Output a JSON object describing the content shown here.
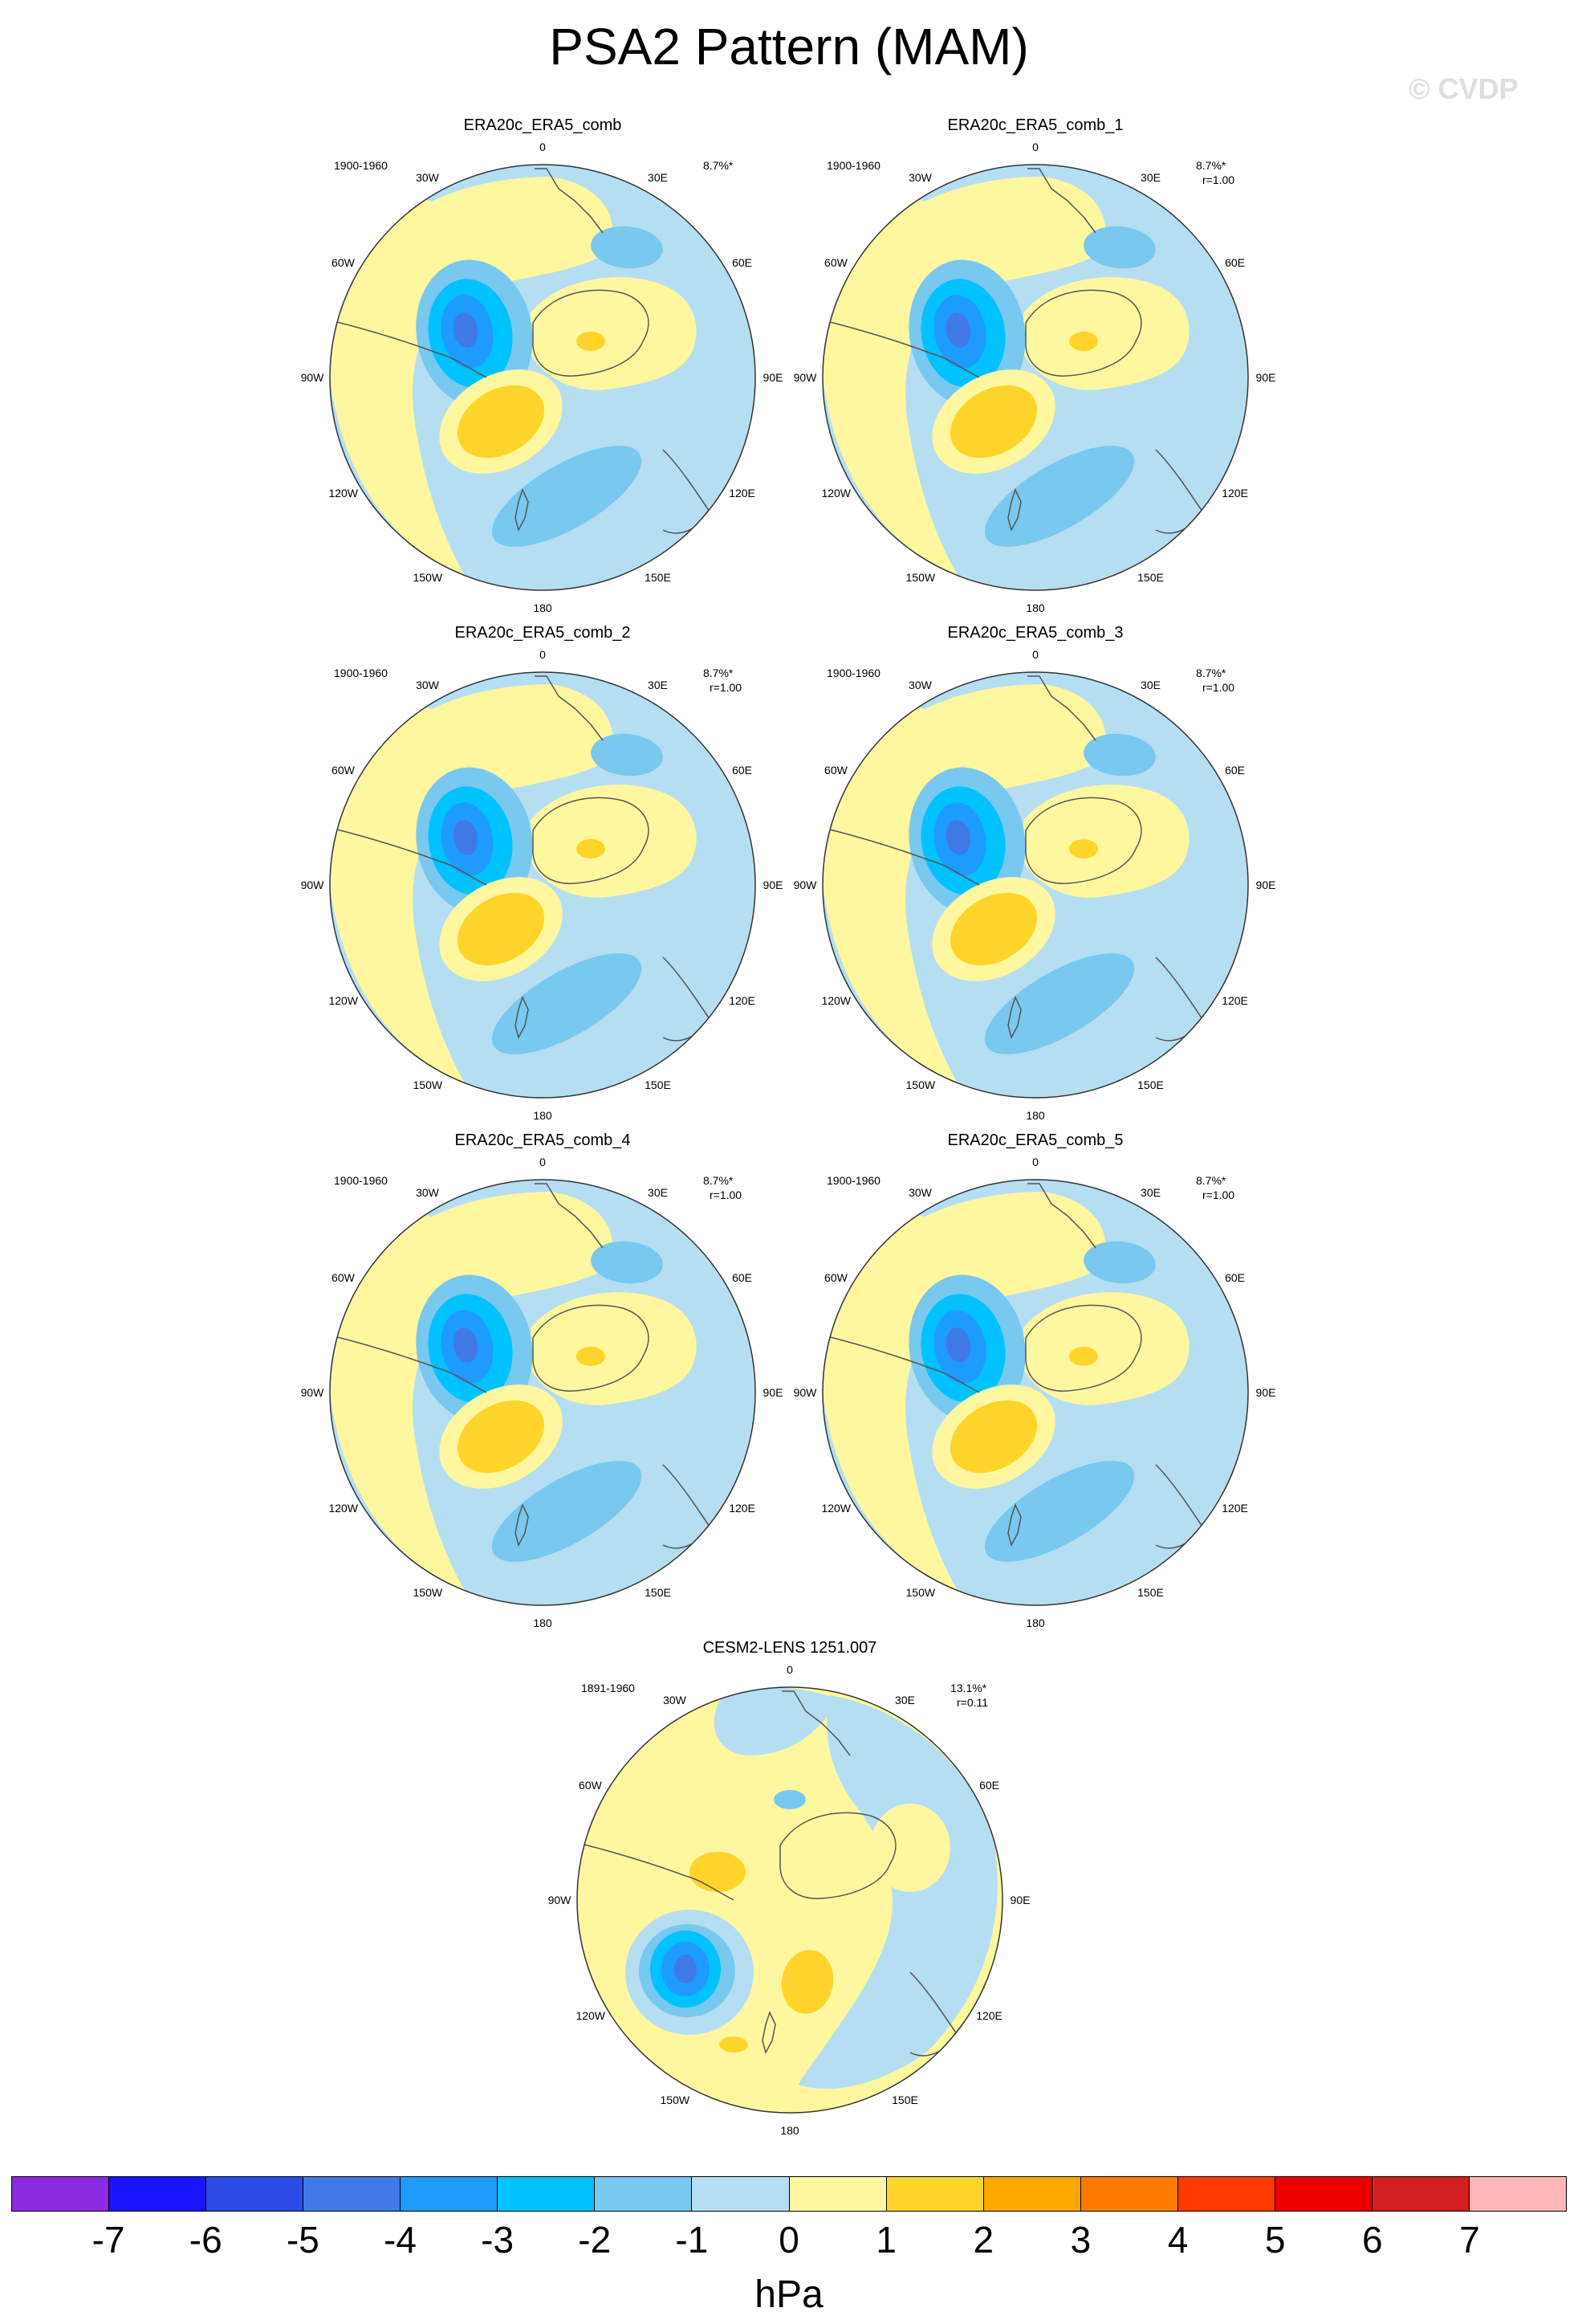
{
  "title": "PSA2 Pattern (MAM)",
  "watermark": "© CVDP",
  "longitude_labels": [
    "0",
    "30E",
    "60E",
    "90E",
    "120E",
    "150E",
    "180",
    "150W",
    "120W",
    "90W",
    "60W",
    "30W"
  ],
  "panels": [
    {
      "title": "ERA20c_ERA5_comb",
      "period": "1900-1960",
      "variance": "8.7%*",
      "correlation": "",
      "pattern": "era"
    },
    {
      "title": "ERA20c_ERA5_comb_1",
      "period": "1900-1960",
      "variance": "8.7%*",
      "correlation": "r=1.00",
      "pattern": "era"
    },
    {
      "title": "ERA20c_ERA5_comb_2",
      "period": "1900-1960",
      "variance": "8.7%*",
      "correlation": "r=1.00",
      "pattern": "era"
    },
    {
      "title": "ERA20c_ERA5_comb_3",
      "period": "1900-1960",
      "variance": "8.7%*",
      "correlation": "r=1.00",
      "pattern": "era"
    },
    {
      "title": "ERA20c_ERA5_comb_4",
      "period": "1900-1960",
      "variance": "8.7%*",
      "correlation": "r=1.00",
      "pattern": "era"
    },
    {
      "title": "ERA20c_ERA5_comb_5",
      "period": "1900-1960",
      "variance": "8.7%*",
      "correlation": "r=1.00",
      "pattern": "era"
    },
    {
      "title": "CESM2-LENS 1251.007",
      "period": "1891-1960",
      "variance": "13.1%*",
      "correlation": "r=0.11",
      "pattern": "cesm"
    }
  ],
  "colorbar": {
    "units": "hPa",
    "colors": [
      "#8a2be2",
      "#1a14ff",
      "#2a4be6",
      "#3f7ae6",
      "#1e9bff",
      "#00c2ff",
      "#78c8f0",
      "#b5def2",
      "#fff7a0",
      "#ffd42a",
      "#ffa800",
      "#ff7a00",
      "#ff3a00",
      "#ec0000",
      "#d21e1e",
      "#ffb6b6"
    ],
    "ticks": [
      "-7",
      "-6",
      "-5",
      "-4",
      "-3",
      "-2",
      "-1",
      "0",
      "1",
      "2",
      "3",
      "4",
      "5",
      "6",
      "7"
    ]
  },
  "fills": {
    "ocean": "#b5def2",
    "pos1": "#fff7a0",
    "pos2": "#ffd42a",
    "neg2": "#78c8f0",
    "neg3": "#00c2ff",
    "neg4": "#1e9bff",
    "neg5": "#3f7ae6"
  }
}
